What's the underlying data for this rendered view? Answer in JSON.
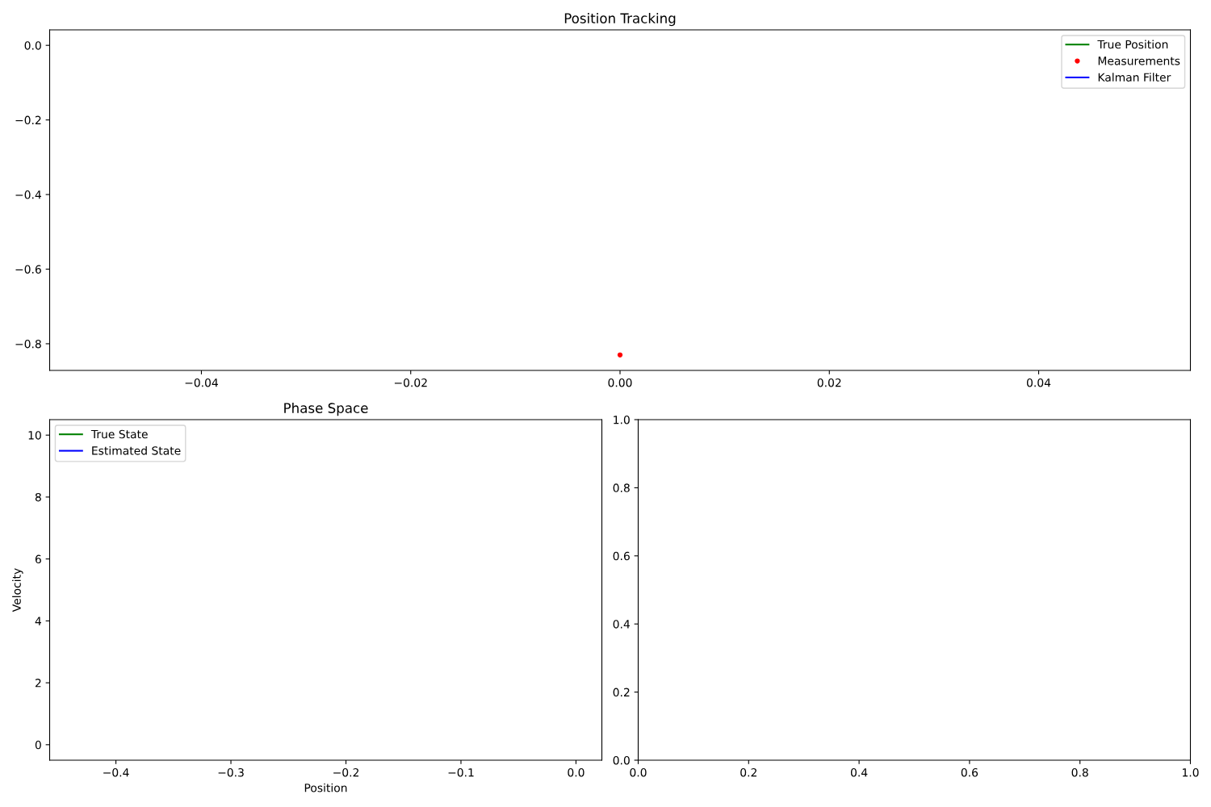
{
  "chart_data": [
    {
      "type": "line",
      "title": "Position Tracking",
      "xlim": [
        -0.0545,
        0.0545
      ],
      "ylim": [
        -0.8715,
        0.0415
      ],
      "xticks": [
        {
          "value": -0.04,
          "label": "−0.04"
        },
        {
          "value": -0.02,
          "label": "−0.02"
        },
        {
          "value": 0,
          "label": "0.00"
        },
        {
          "value": 0.02,
          "label": "0.02"
        },
        {
          "value": 0.04,
          "label": "0.04"
        }
      ],
      "yticks": [
        {
          "value": 0,
          "label": "0.0"
        },
        {
          "value": -0.2,
          "label": "−0.2"
        },
        {
          "value": -0.4,
          "label": "−0.4"
        },
        {
          "value": -0.6,
          "label": "−0.6"
        },
        {
          "value": -0.8,
          "label": "−0.8"
        }
      ],
      "legend": "top right",
      "grid": false,
      "series": [
        {
          "name": "True Position",
          "color": "#008000",
          "values": [
            null
          ]
        },
        {
          "name": "Measurements",
          "color": "#ff0000",
          "type": "scatter",
          "marker": "circle",
          "x": [
            0
          ],
          "values": [
            -0.83
          ]
        },
        {
          "name": "Kalman Filter",
          "color": "#0000ff",
          "values": [
            null
          ]
        }
      ]
    },
    {
      "type": "line",
      "title": "Phase Space",
      "xlabel": "Position",
      "ylabel": "Velocity",
      "xlim": [
        -0.4576,
        0.0225
      ],
      "ylim": [
        -0.5,
        10.5
      ],
      "xticks": [
        {
          "value": -0.4,
          "label": "−0.4"
        },
        {
          "value": -0.3,
          "label": "−0.3"
        },
        {
          "value": -0.2,
          "label": "−0.2"
        },
        {
          "value": -0.1,
          "label": "−0.1"
        },
        {
          "value": 0,
          "label": "0.0"
        }
      ],
      "yticks": [
        0,
        2,
        4,
        6,
        8,
        10
      ],
      "legend": "top left",
      "grid": false,
      "series": [
        {
          "name": "True State",
          "color": "#008000",
          "x": [
            null
          ],
          "values": [
            null
          ]
        },
        {
          "name": "Estimated State",
          "color": "#0000ff",
          "x": [
            null
          ],
          "values": [
            null
          ]
        }
      ]
    },
    {
      "type": "line",
      "xlim": [
        0,
        1
      ],
      "ylim": [
        0,
        1
      ],
      "xticks": [
        {
          "value": 0,
          "label": "0.0"
        },
        {
          "value": 0.2,
          "label": "0.2"
        },
        {
          "value": 0.4,
          "label": "0.4"
        },
        {
          "value": 0.6,
          "label": "0.6"
        },
        {
          "value": 0.8,
          "label": "0.8"
        },
        {
          "value": 1,
          "label": "1.0"
        }
      ],
      "yticks": [
        {
          "value": 0,
          "label": "0.0"
        },
        {
          "value": 0.2,
          "label": "0.2"
        },
        {
          "value": 0.4,
          "label": "0.4"
        },
        {
          "value": 0.6,
          "label": "0.6"
        },
        {
          "value": 0.8,
          "label": "0.8"
        },
        {
          "value": 1,
          "label": "1.0"
        }
      ]
    }
  ]
}
